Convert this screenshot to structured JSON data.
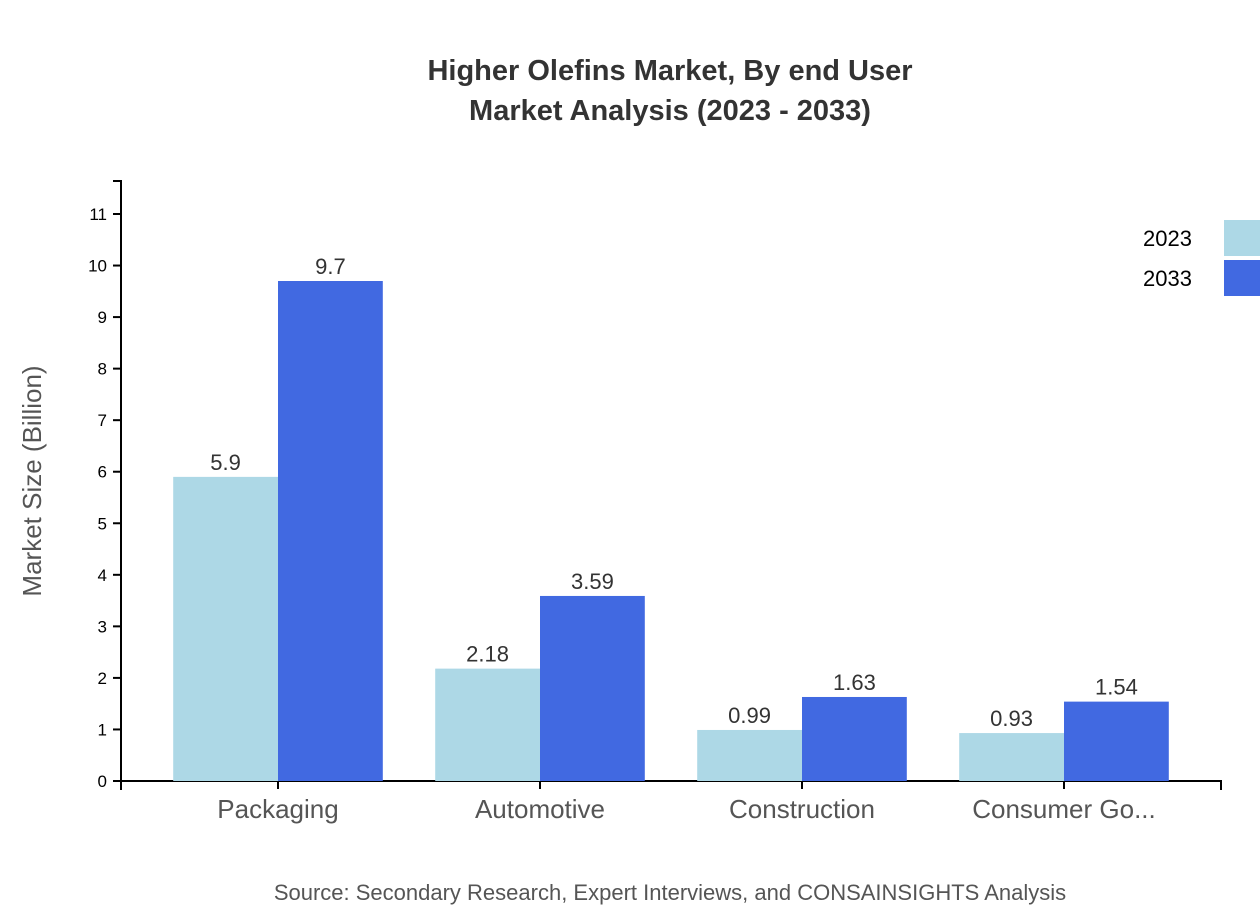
{
  "chart_data": {
    "type": "bar",
    "title": [
      "Higher Olefins Market, By end User",
      "Market Analysis (2023 - 2033)"
    ],
    "xlabel": "",
    "ylabel": "Market Size (Billion)",
    "categories": [
      "Packaging",
      "Automotive",
      "Construction",
      "Consumer Go..."
    ],
    "series": [
      {
        "name": "2023",
        "color": "#add8e6",
        "values": [
          5.9,
          2.18,
          0.99,
          0.93
        ]
      },
      {
        "name": "2033",
        "color": "#4169e1",
        "values": [
          9.7,
          3.59,
          1.63,
          1.54
        ]
      }
    ],
    "ylim": [
      0,
      11.64
    ],
    "yticks": [
      0,
      1,
      2,
      3,
      4,
      5,
      6,
      7,
      8,
      9,
      10,
      11
    ],
    "grid": false,
    "legend_position": "top-right",
    "source": "Source: Secondary Research, Expert Interviews, and CONSAINSIGHTS Analysis"
  }
}
